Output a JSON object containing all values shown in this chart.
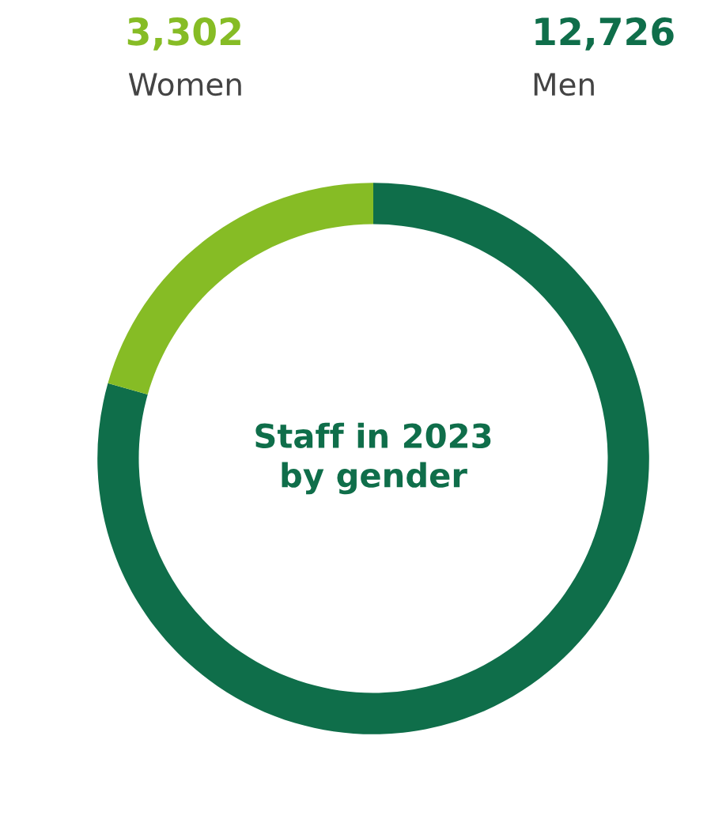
{
  "chart_data": {
    "type": "donut",
    "title": "Staff in 2023\nby gender",
    "categories": [
      "Men",
      "Women"
    ],
    "values": [
      12726,
      3302
    ],
    "value_labels": [
      "12,726",
      "3,302"
    ],
    "colors": [
      "#0f6e4a",
      "#86bc25"
    ],
    "legend": false
  }
}
